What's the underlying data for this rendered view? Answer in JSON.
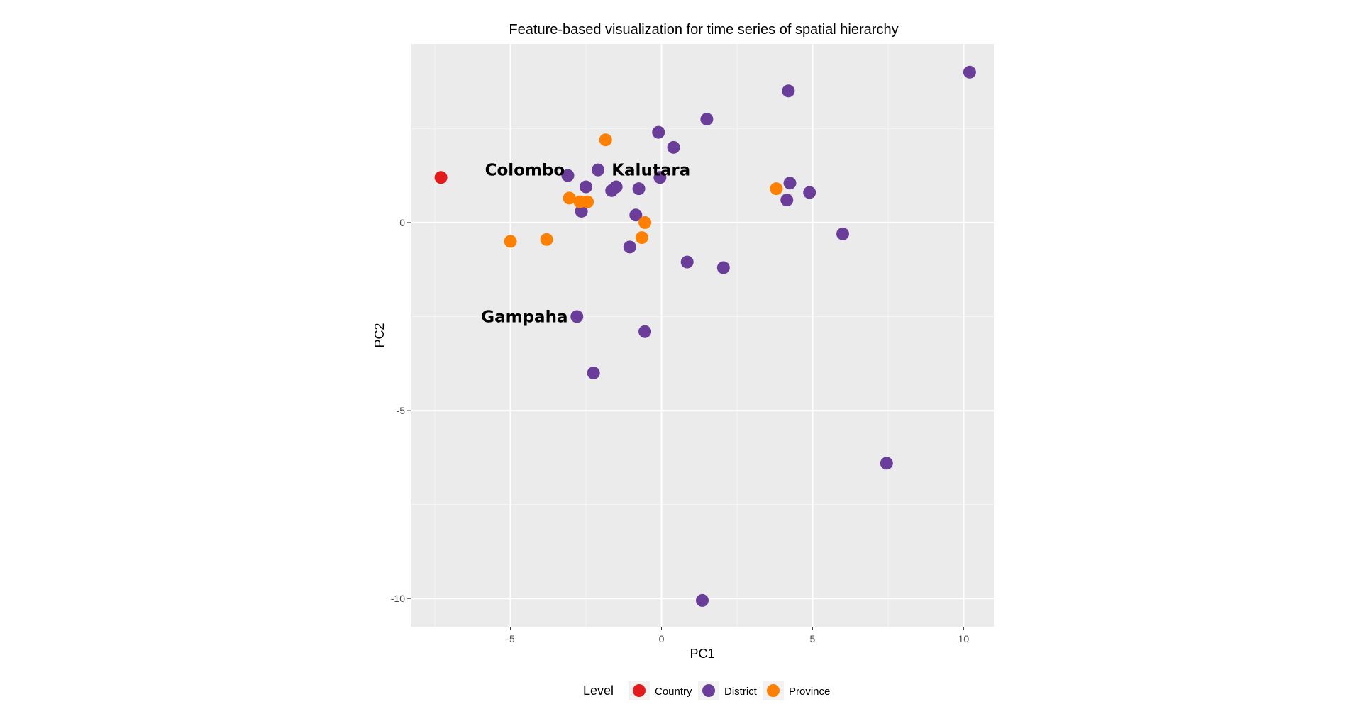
{
  "chart_data": {
    "type": "scatter",
    "title": "Feature-based visualization for time series of spatial hierarchy",
    "xlabel": "PC1",
    "ylabel": "PC2",
    "xlim": [
      -8.3,
      11.0
    ],
    "ylim": [
      -10.75,
      4.75
    ],
    "x_ticks": [
      -5,
      0,
      5,
      10
    ],
    "x_tick_labels": [
      "-5",
      "0",
      "5",
      "10"
    ],
    "y_ticks": [
      -10,
      -5,
      0
    ],
    "y_tick_labels": [
      "-10",
      "-5",
      "0"
    ],
    "grid": true,
    "background": "#ebebeb",
    "legend": {
      "title": "Level",
      "position": "bottom",
      "entries": [
        {
          "label": "Country",
          "color": "#e41a1c"
        },
        {
          "label": "District",
          "color": "#6a3d9a"
        },
        {
          "label": "Province",
          "color": "#ff7f00"
        }
      ]
    },
    "series": [
      {
        "name": "Country",
        "color": "#e41a1c",
        "points": [
          {
            "x": -7.3,
            "y": 1.2
          }
        ]
      },
      {
        "name": "District",
        "color": "#6a3d9a",
        "points": [
          {
            "x": 10.2,
            "y": 4.0
          },
          {
            "x": 4.2,
            "y": 3.5
          },
          {
            "x": 1.5,
            "y": 2.75
          },
          {
            "x": -0.1,
            "y": 2.4
          },
          {
            "x": 0.4,
            "y": 2.0
          },
          {
            "x": -3.1,
            "y": 1.25
          },
          {
            "x": -2.1,
            "y": 1.4
          },
          {
            "x": -0.05,
            "y": 1.2
          },
          {
            "x": -2.5,
            "y": 0.95
          },
          {
            "x": -1.5,
            "y": 0.95
          },
          {
            "x": -1.65,
            "y": 0.85
          },
          {
            "x": -0.75,
            "y": 0.9
          },
          {
            "x": 4.25,
            "y": 1.05
          },
          {
            "x": 4.9,
            "y": 0.8
          },
          {
            "x": 4.15,
            "y": 0.6
          },
          {
            "x": -2.65,
            "y": 0.3
          },
          {
            "x": -0.85,
            "y": 0.2
          },
          {
            "x": 6.0,
            "y": -0.3
          },
          {
            "x": -1.05,
            "y": -0.65
          },
          {
            "x": 0.85,
            "y": -1.05
          },
          {
            "x": 2.05,
            "y": -1.2
          },
          {
            "x": -2.8,
            "y": -2.5
          },
          {
            "x": -0.55,
            "y": -2.9
          },
          {
            "x": -2.25,
            "y": -4.0
          },
          {
            "x": 7.45,
            "y": -6.4
          },
          {
            "x": 1.35,
            "y": -10.05
          }
        ]
      },
      {
        "name": "Province",
        "color": "#ff7f00",
        "points": [
          {
            "x": -1.85,
            "y": 2.2
          },
          {
            "x": -3.05,
            "y": 0.65
          },
          {
            "x": -2.7,
            "y": 0.55
          },
          {
            "x": -2.45,
            "y": 0.55
          },
          {
            "x": 3.8,
            "y": 0.9
          },
          {
            "x": -0.55,
            "y": 0.0
          },
          {
            "x": -0.65,
            "y": -0.4
          },
          {
            "x": -3.8,
            "y": -0.45
          },
          {
            "x": -5.0,
            "y": -0.5
          }
        ]
      }
    ],
    "annotations": [
      {
        "text": "Colombo",
        "x": -3.2,
        "y": 1.4,
        "anchor": "end"
      },
      {
        "text": "Kalutara",
        "x": -1.65,
        "y": 1.4,
        "anchor": "start"
      },
      {
        "text": "Gampaha",
        "x": -3.1,
        "y": -2.5,
        "anchor": "end"
      }
    ]
  }
}
